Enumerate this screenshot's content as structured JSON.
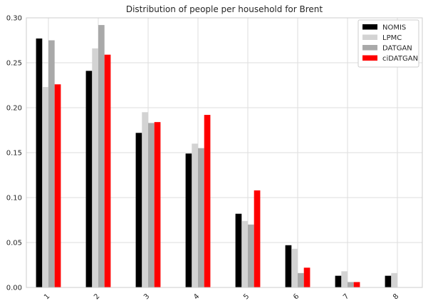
{
  "chart_data": {
    "type": "bar",
    "title": "Distribution of people per household for Brent",
    "xlabel": "",
    "ylabel": "",
    "categories": [
      "1",
      "2",
      "3",
      "4",
      "5",
      "6",
      "7",
      "8"
    ],
    "ylim": [
      0,
      0.3
    ],
    "yticks": [
      "0.00",
      "0.05",
      "0.10",
      "0.15",
      "0.20",
      "0.25",
      "0.30"
    ],
    "grid": true,
    "legend_position": "top-right",
    "series": [
      {
        "name": "NOMIS",
        "color": "#000000",
        "values": [
          0.277,
          0.241,
          0.172,
          0.149,
          0.082,
          0.047,
          0.013,
          0.013
        ]
      },
      {
        "name": "LPMC",
        "color": "#d3d3d3",
        "values": [
          0.223,
          0.266,
          0.195,
          0.16,
          0.074,
          0.043,
          0.018,
          0.016
        ]
      },
      {
        "name": "DATGAN",
        "color": "#a9a9a9",
        "values": [
          0.275,
          0.292,
          0.183,
          0.155,
          0.07,
          0.016,
          0.006,
          0.0
        ]
      },
      {
        "name": "ciDATGAN",
        "color": "#ff0000",
        "values": [
          0.226,
          0.259,
          0.184,
          0.192,
          0.108,
          0.022,
          0.006,
          0.0
        ]
      }
    ]
  }
}
